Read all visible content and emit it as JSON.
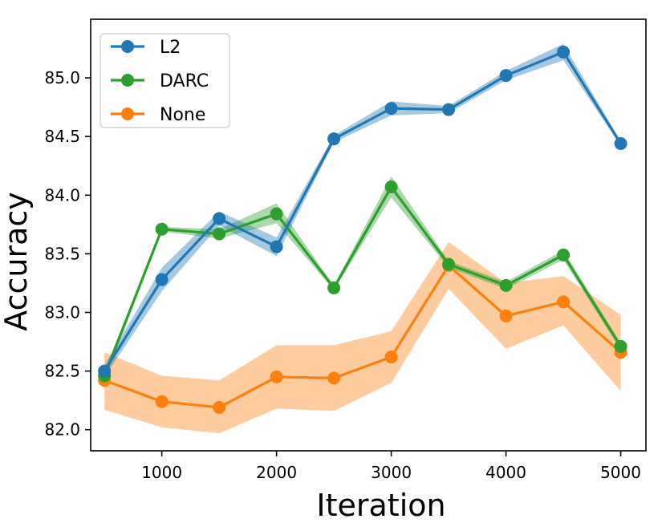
{
  "chart_data": {
    "type": "line",
    "title": "",
    "xlabel": "Iteration",
    "ylabel": "Accuracy",
    "xlim": [
      380,
      5220
    ],
    "ylim": [
      81.82,
      85.5
    ],
    "xticks": [
      1000,
      2000,
      3000,
      4000,
      5000
    ],
    "xtick_labels": [
      "1000",
      "2000",
      "3000",
      "4000",
      "5000"
    ],
    "yticks": [
      82.0,
      82.5,
      83.0,
      83.5,
      84.0,
      84.5,
      85.0
    ],
    "ytick_labels": [
      "82.0",
      "82.5",
      "83.0",
      "83.5",
      "84.0",
      "84.5",
      "85.0"
    ],
    "grid": false,
    "legend_position": "top-left",
    "x": [
      500,
      1000,
      1500,
      2000,
      2500,
      3000,
      3500,
      4000,
      4500,
      5000
    ],
    "series": [
      {
        "name": "None",
        "color": "#ff7f0e",
        "values": [
          82.42,
          82.24,
          82.19,
          82.45,
          82.44,
          82.62,
          83.4,
          82.97,
          83.09,
          82.66
        ],
        "lower": [
          82.17,
          82.02,
          81.97,
          82.18,
          82.16,
          82.4,
          83.2,
          82.69,
          82.89,
          82.33
        ],
        "upper": [
          82.66,
          82.46,
          82.42,
          82.72,
          82.72,
          82.84,
          83.6,
          83.25,
          83.31,
          82.98
        ]
      },
      {
        "name": "DARC",
        "color": "#2ca02c",
        "values": [
          82.46,
          83.71,
          83.67,
          83.84,
          83.21,
          84.07,
          83.41,
          83.23,
          83.49,
          82.71
        ],
        "lower": [
          82.42,
          83.69,
          83.63,
          83.76,
          83.19,
          83.98,
          83.38,
          83.2,
          83.45,
          82.68
        ],
        "upper": [
          82.5,
          83.73,
          83.71,
          83.93,
          83.23,
          84.16,
          83.44,
          83.26,
          83.53,
          82.74
        ]
      },
      {
        "name": "L2",
        "color": "#1f77b4",
        "values": [
          82.5,
          83.28,
          83.8,
          83.56,
          84.48,
          84.74,
          84.73,
          85.02,
          85.22,
          84.44
        ],
        "lower": [
          82.45,
          83.18,
          83.74,
          83.48,
          84.45,
          84.68,
          84.7,
          84.98,
          85.15,
          84.42
        ],
        "upper": [
          82.55,
          83.38,
          83.86,
          83.64,
          84.51,
          84.8,
          84.76,
          85.06,
          85.29,
          84.46
        ]
      }
    ],
    "legend_order": [
      "L2",
      "DARC",
      "None"
    ]
  }
}
